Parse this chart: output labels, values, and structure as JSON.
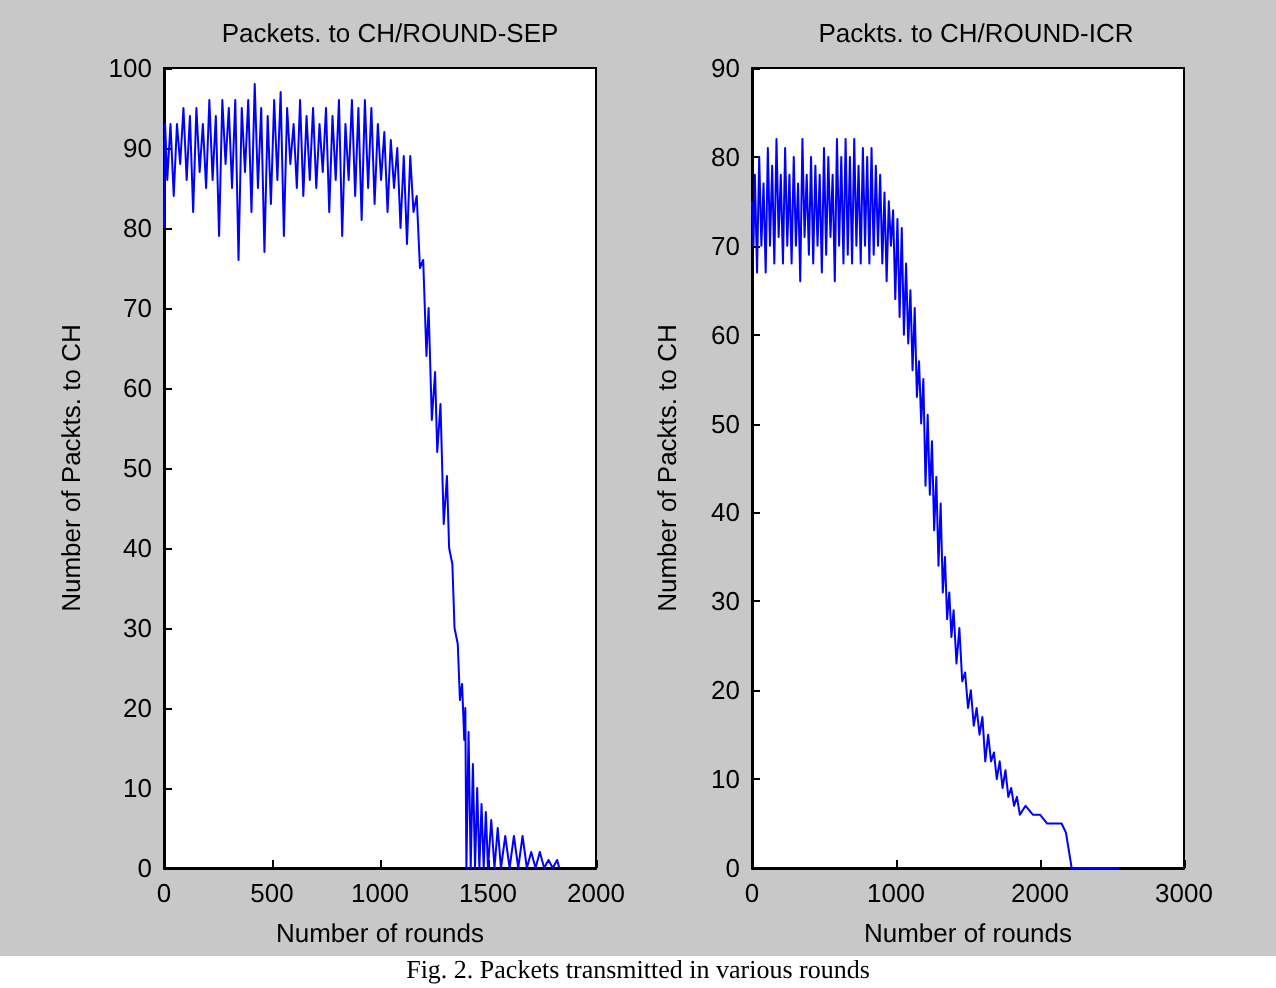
{
  "chart_data": [
    {
      "type": "line",
      "title": "Packets. to CH/ROUND-SEP",
      "xlabel": "Number of rounds",
      "ylabel": "Number of Packts. to CH",
      "color": "#0000ff",
      "marker": "none",
      "line_style": "solid",
      "xlim": [
        0,
        2000
      ],
      "xticks": [
        0,
        500,
        1000,
        1500,
        2000
      ],
      "ylim": [
        0,
        100
      ],
      "yticks": [
        0,
        10,
        20,
        30,
        40,
        50,
        60,
        70,
        80,
        90,
        100
      ],
      "x": [
        0,
        5,
        15,
        30,
        45,
        60,
        75,
        90,
        105,
        120,
        135,
        150,
        165,
        180,
        195,
        210,
        225,
        240,
        255,
        270,
        285,
        300,
        315,
        330,
        345,
        360,
        375,
        390,
        405,
        420,
        435,
        450,
        465,
        480,
        495,
        510,
        525,
        540,
        555,
        570,
        585,
        600,
        615,
        630,
        645,
        660,
        675,
        690,
        705,
        720,
        735,
        750,
        765,
        780,
        795,
        810,
        825,
        840,
        855,
        870,
        885,
        900,
        915,
        930,
        945,
        960,
        975,
        990,
        1005,
        1020,
        1035,
        1050,
        1065,
        1080,
        1095,
        1110,
        1125,
        1140,
        1155,
        1170,
        1185,
        1200,
        1215,
        1225,
        1240,
        1255,
        1265,
        1280,
        1295,
        1310,
        1320,
        1335,
        1345,
        1360,
        1370,
        1380,
        1390,
        1395,
        1400,
        1410,
        1420,
        1430,
        1440,
        1450,
        1460,
        1470,
        1480,
        1490,
        1500,
        1515,
        1530,
        1545,
        1560,
        1580,
        1600,
        1620,
        1640,
        1660,
        1680,
        1700,
        1720,
        1740,
        1760,
        1780,
        1800,
        1820,
        1830
      ],
      "values": [
        80,
        93,
        86,
        93,
        84,
        93,
        88,
        95,
        86,
        94,
        82,
        95,
        87,
        93,
        85,
        96,
        86,
        94,
        79,
        96,
        88,
        95,
        85,
        96,
        76,
        95,
        87,
        96,
        82,
        98,
        85,
        95,
        77,
        94,
        83,
        96,
        86,
        97,
        79,
        95,
        88,
        93,
        85,
        96,
        84,
        94,
        86,
        95,
        85,
        93,
        87,
        95,
        82,
        94,
        86,
        96,
        79,
        93,
        86,
        96,
        84,
        95,
        81,
        96,
        85,
        95,
        83,
        93,
        86,
        92,
        82,
        91,
        85,
        90,
        80,
        89,
        78,
        89,
        82,
        84,
        75,
        76,
        64,
        70,
        56,
        62,
        52,
        58,
        43,
        49,
        40,
        38,
        30,
        28,
        21,
        23,
        16,
        20,
        0,
        17,
        0,
        13,
        0,
        10,
        0,
        8,
        0,
        7,
        0,
        6,
        0,
        5,
        0,
        4,
        0,
        4,
        0,
        4,
        0,
        2,
        0,
        2,
        0,
        1,
        0,
        1,
        0
      ],
      "annotations": [
        "Fig. 2. Packets transmitted in various rounds"
      ]
    },
    {
      "type": "line",
      "title": "Packts. to CH/ROUND-ICR",
      "xlabel": "Number of rounds",
      "ylabel": "Number of Packts. to CH",
      "color": "#0000ff",
      "marker": "none",
      "line_style": "solid",
      "xlim": [
        0,
        3000
      ],
      "xticks": [
        0,
        1000,
        2000,
        3000
      ],
      "ylim": [
        0,
        90
      ],
      "yticks": [
        0,
        10,
        20,
        30,
        40,
        50,
        60,
        70,
        80,
        90
      ],
      "x": [
        0,
        10,
        20,
        35,
        50,
        65,
        80,
        95,
        110,
        125,
        140,
        155,
        170,
        185,
        200,
        215,
        230,
        245,
        260,
        275,
        290,
        305,
        320,
        335,
        350,
        365,
        380,
        395,
        410,
        425,
        440,
        455,
        470,
        485,
        500,
        515,
        530,
        545,
        560,
        575,
        590,
        605,
        620,
        635,
        650,
        665,
        680,
        695,
        710,
        725,
        740,
        755,
        770,
        785,
        800,
        815,
        830,
        845,
        860,
        875,
        890,
        905,
        920,
        935,
        950,
        965,
        980,
        995,
        1010,
        1025,
        1040,
        1055,
        1070,
        1085,
        1100,
        1115,
        1130,
        1145,
        1160,
        1175,
        1190,
        1205,
        1220,
        1235,
        1250,
        1265,
        1280,
        1295,
        1310,
        1325,
        1340,
        1355,
        1370,
        1385,
        1400,
        1420,
        1440,
        1460,
        1480,
        1500,
        1520,
        1540,
        1560,
        1580,
        1600,
        1620,
        1640,
        1660,
        1680,
        1700,
        1720,
        1740,
        1760,
        1780,
        1800,
        1820,
        1840,
        1860,
        1900,
        1950,
        2000,
        2050,
        2100,
        2150,
        2180,
        2200,
        2220,
        2550
      ],
      "values": [
        75,
        70,
        78,
        67,
        80,
        70,
        77,
        67,
        81,
        70,
        79,
        68,
        82,
        71,
        78,
        68,
        81,
        70,
        78,
        68,
        80,
        70,
        77,
        66,
        82,
        71,
        78,
        69,
        80,
        68,
        79,
        70,
        78,
        67,
        81,
        69,
        80,
        71,
        78,
        66,
        82,
        70,
        80,
        68,
        82,
        69,
        80,
        68,
        82,
        70,
        79,
        68,
        81,
        70,
        80,
        68,
        81,
        69,
        79,
        70,
        78,
        68,
        76,
        66,
        75,
        70,
        74,
        64,
        73,
        62,
        72,
        60,
        68,
        59,
        65,
        56,
        63,
        53,
        57,
        50,
        55,
        43,
        51,
        42,
        48,
        38,
        44,
        34,
        41,
        31,
        35,
        28,
        31,
        26,
        29,
        23,
        27,
        21,
        22,
        18,
        20,
        16,
        18,
        15,
        17,
        12,
        15,
        12,
        13,
        10,
        12,
        9,
        11,
        8,
        9,
        7,
        8,
        6,
        7,
        6,
        6,
        5,
        5,
        5,
        4,
        2,
        0,
        0
      ]
    }
  ]
}
